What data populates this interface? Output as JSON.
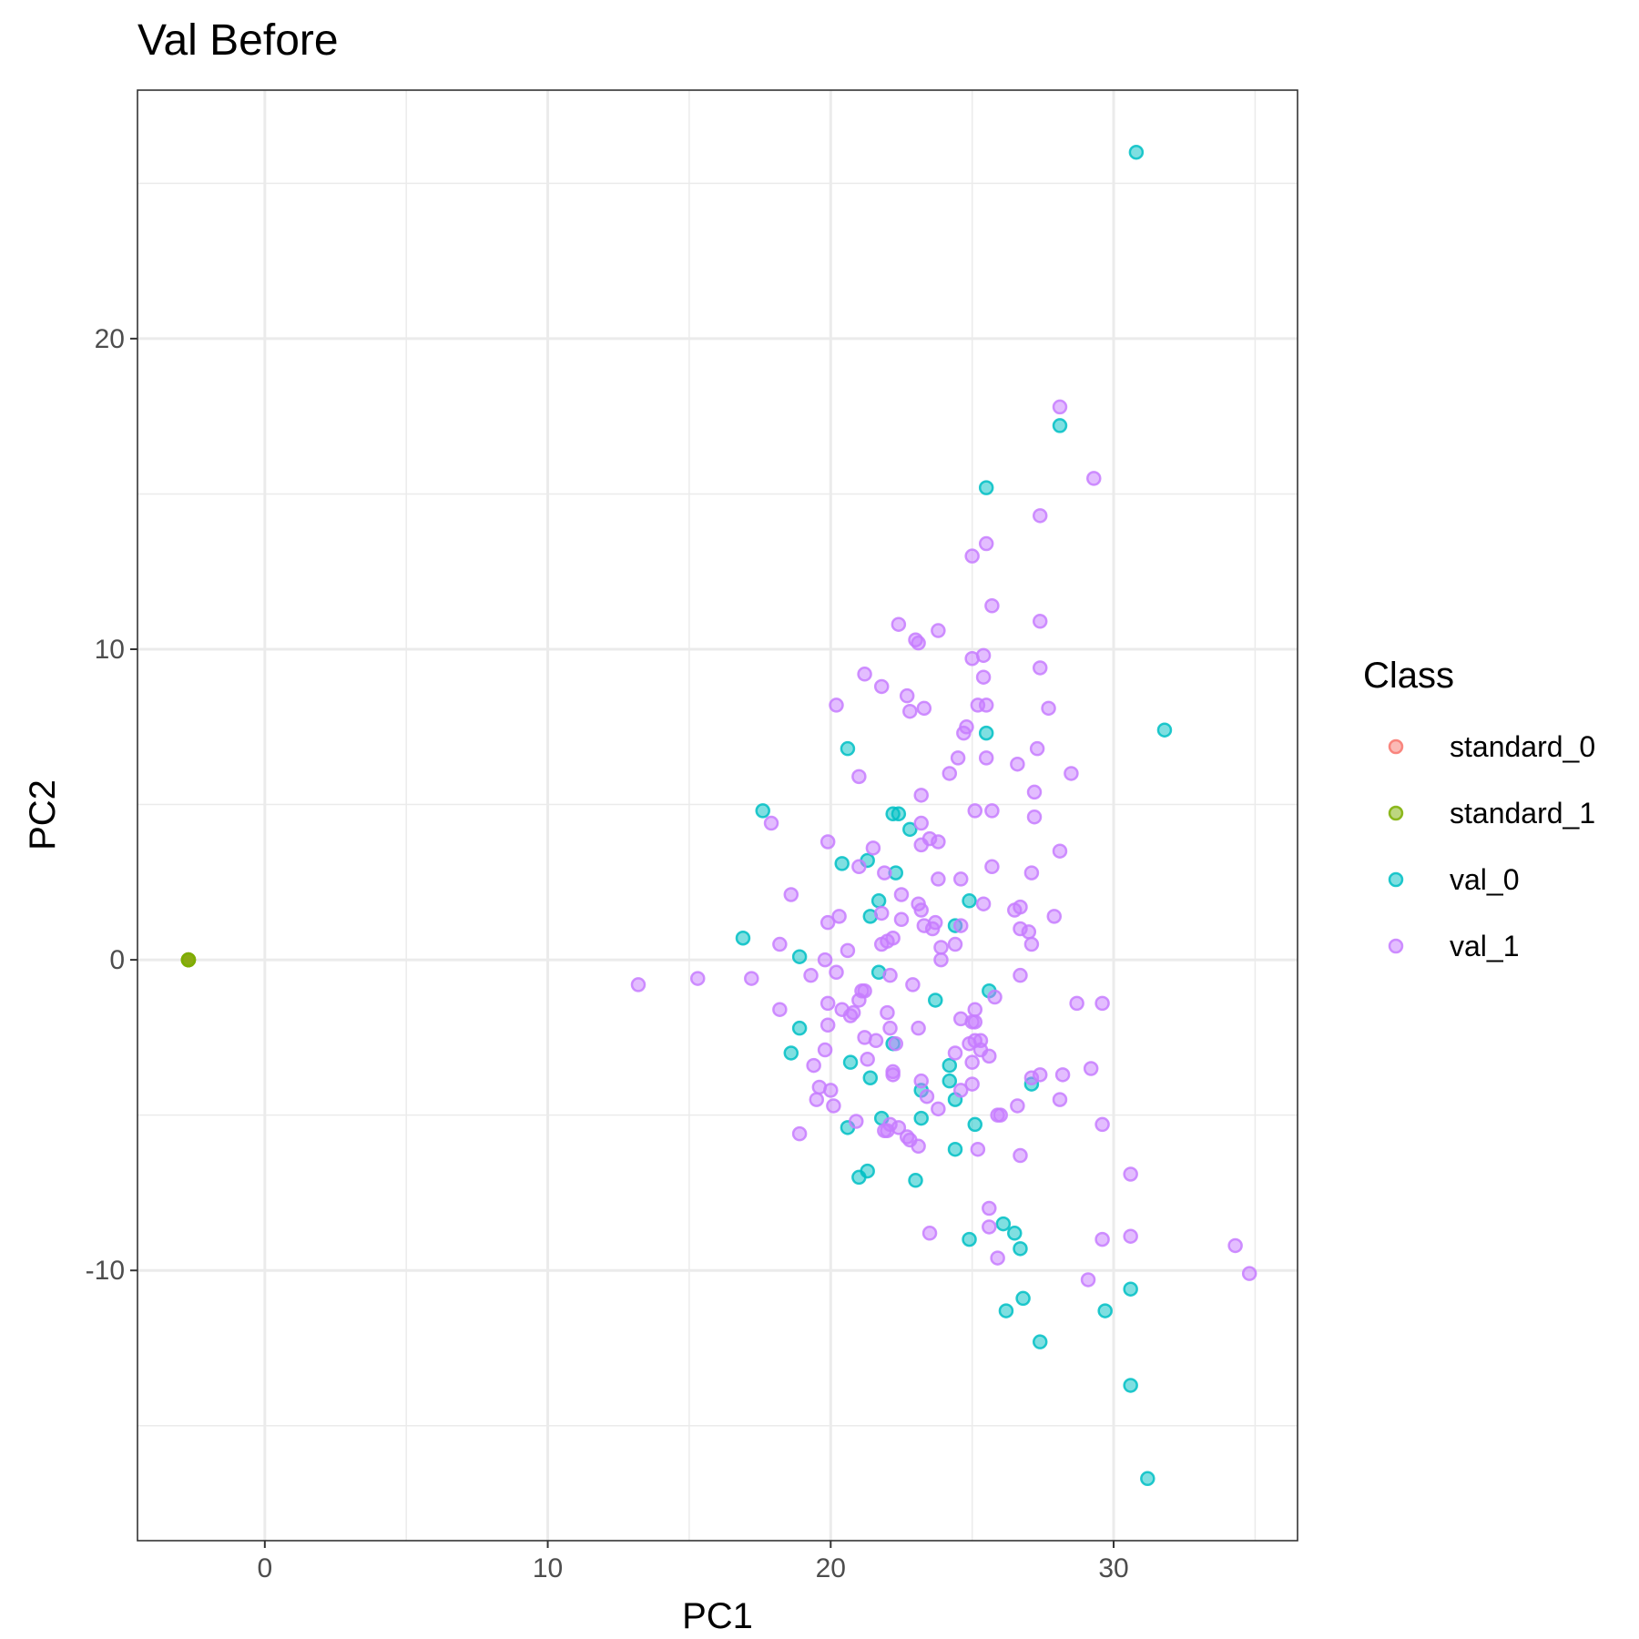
{
  "chart_data": {
    "type": "scatter",
    "title": "Val Before",
    "xlabel": "PC1",
    "ylabel": "PC2",
    "xlim": [
      -4.5,
      36.5
    ],
    "ylim": [
      -18.7,
      28
    ],
    "x_ticks": [
      0,
      10,
      20,
      30
    ],
    "y_ticks": [
      -10,
      0,
      10,
      20
    ],
    "x_tick_labels": [
      "0",
      "10",
      "20",
      "30"
    ],
    "y_tick_labels": [
      "-10",
      "0",
      "10",
      "20"
    ],
    "grid": true,
    "legend": {
      "title": "Class",
      "position": "right",
      "entries": [
        "standard_0",
        "standard_1",
        "val_0",
        "val_1"
      ]
    },
    "series": [
      {
        "name": "standard_0",
        "color": "#F8766D",
        "points": [
          [
            -2.7,
            0.0
          ],
          [
            -2.7,
            0.0
          ]
        ]
      },
      {
        "name": "standard_1",
        "color": "#7CAE00",
        "points": [
          [
            -2.7,
            0.0
          ],
          [
            -2.7,
            0.0
          ],
          [
            -2.7,
            0.0
          ]
        ]
      },
      {
        "name": "val_0",
        "color": "#00BFC4",
        "points": [
          [
            30.8,
            26.0
          ],
          [
            28.1,
            17.2
          ],
          [
            25.5,
            15.2
          ],
          [
            31.8,
            7.4
          ],
          [
            25.5,
            7.3
          ],
          [
            20.6,
            6.8
          ],
          [
            17.6,
            4.8
          ],
          [
            22.2,
            4.7
          ],
          [
            22.4,
            4.7
          ],
          [
            22.8,
            4.2
          ],
          [
            21.3,
            3.2
          ],
          [
            20.4,
            3.1
          ],
          [
            22.3,
            2.8
          ],
          [
            21.7,
            1.9
          ],
          [
            24.9,
            1.9
          ],
          [
            21.4,
            1.4
          ],
          [
            24.4,
            1.1
          ],
          [
            16.9,
            0.7
          ],
          [
            18.9,
            0.1
          ],
          [
            21.7,
            -0.4
          ],
          [
            25.6,
            -1.0
          ],
          [
            23.7,
            -1.3
          ],
          [
            18.9,
            -2.2
          ],
          [
            22.2,
            -2.7
          ],
          [
            18.6,
            -3.0
          ],
          [
            20.7,
            -3.3
          ],
          [
            24.2,
            -3.4
          ],
          [
            21.4,
            -3.8
          ],
          [
            24.2,
            -3.9
          ],
          [
            27.1,
            -4.0
          ],
          [
            23.2,
            -4.2
          ],
          [
            24.4,
            -4.5
          ],
          [
            21.8,
            -5.1
          ],
          [
            23.2,
            -5.1
          ],
          [
            20.6,
            -5.4
          ],
          [
            25.1,
            -5.3
          ],
          [
            24.4,
            -6.1
          ],
          [
            21.3,
            -6.8
          ],
          [
            21.0,
            -7.0
          ],
          [
            23.0,
            -7.1
          ],
          [
            26.1,
            -8.5
          ],
          [
            26.5,
            -8.8
          ],
          [
            24.9,
            -9.0
          ],
          [
            26.7,
            -9.3
          ],
          [
            30.6,
            -10.6
          ],
          [
            26.8,
            -10.9
          ],
          [
            26.2,
            -11.3
          ],
          [
            29.7,
            -11.3
          ],
          [
            27.4,
            -12.3
          ],
          [
            30.6,
            -13.7
          ],
          [
            31.2,
            -16.7
          ]
        ]
      },
      {
        "name": "val_1",
        "color": "#C77CFF",
        "points": [
          [
            28.1,
            17.8
          ],
          [
            29.3,
            15.5
          ],
          [
            27.4,
            14.3
          ],
          [
            25.5,
            13.4
          ],
          [
            25.0,
            13.0
          ],
          [
            25.7,
            11.4
          ],
          [
            27.4,
            10.9
          ],
          [
            22.4,
            10.8
          ],
          [
            23.8,
            10.6
          ],
          [
            23.0,
            10.3
          ],
          [
            23.1,
            10.2
          ],
          [
            25.4,
            9.8
          ],
          [
            25.0,
            9.7
          ],
          [
            27.4,
            9.4
          ],
          [
            21.2,
            9.2
          ],
          [
            25.4,
            9.1
          ],
          [
            21.8,
            8.8
          ],
          [
            22.7,
            8.5
          ],
          [
            20.2,
            8.2
          ],
          [
            25.5,
            8.2
          ],
          [
            25.2,
            8.2
          ],
          [
            27.7,
            8.1
          ],
          [
            23.3,
            8.1
          ],
          [
            22.8,
            8.0
          ],
          [
            24.8,
            7.5
          ],
          [
            24.7,
            7.3
          ],
          [
            27.3,
            6.8
          ],
          [
            24.5,
            6.5
          ],
          [
            25.5,
            6.5
          ],
          [
            26.6,
            6.3
          ],
          [
            28.5,
            6.0
          ],
          [
            24.2,
            6.0
          ],
          [
            21.0,
            5.9
          ],
          [
            27.2,
            5.4
          ],
          [
            23.2,
            5.3
          ],
          [
            25.7,
            4.8
          ],
          [
            25.1,
            4.8
          ],
          [
            27.2,
            4.6
          ],
          [
            17.9,
            4.4
          ],
          [
            23.2,
            4.4
          ],
          [
            23.5,
            3.9
          ],
          [
            23.8,
            3.8
          ],
          [
            19.9,
            3.8
          ],
          [
            21.5,
            3.6
          ],
          [
            23.2,
            3.7
          ],
          [
            28.1,
            3.5
          ],
          [
            21.0,
            3.0
          ],
          [
            25.7,
            3.0
          ],
          [
            27.1,
            2.8
          ],
          [
            21.9,
            2.8
          ],
          [
            24.6,
            2.6
          ],
          [
            23.8,
            2.6
          ],
          [
            22.5,
            2.1
          ],
          [
            18.6,
            2.1
          ],
          [
            23.1,
            1.8
          ],
          [
            25.4,
            1.8
          ],
          [
            26.7,
            1.7
          ],
          [
            26.5,
            1.6
          ],
          [
            23.2,
            1.6
          ],
          [
            27.9,
            1.4
          ],
          [
            20.3,
            1.4
          ],
          [
            21.8,
            1.5
          ],
          [
            22.5,
            1.3
          ],
          [
            19.9,
            1.2
          ],
          [
            23.7,
            1.2
          ],
          [
            23.3,
            1.1
          ],
          [
            23.6,
            1.0
          ],
          [
            24.6,
            1.1
          ],
          [
            26.7,
            1.0
          ],
          [
            27.0,
            0.9
          ],
          [
            22.2,
            0.7
          ],
          [
            22.0,
            0.6
          ],
          [
            21.8,
            0.5
          ],
          [
            18.2,
            0.5
          ],
          [
            24.4,
            0.5
          ],
          [
            23.9,
            0.4
          ],
          [
            27.1,
            0.5
          ],
          [
            20.6,
            0.3
          ],
          [
            19.8,
            0.0
          ],
          [
            23.9,
            0.0
          ],
          [
            13.2,
            -0.8
          ],
          [
            15.3,
            -0.6
          ],
          [
            17.2,
            -0.6
          ],
          [
            19.3,
            -0.5
          ],
          [
            20.2,
            -0.4
          ],
          [
            22.1,
            -0.5
          ],
          [
            26.7,
            -0.5
          ],
          [
            22.9,
            -0.8
          ],
          [
            21.1,
            -1.0
          ],
          [
            21.2,
            -1.0
          ],
          [
            25.8,
            -1.2
          ],
          [
            21.0,
            -1.3
          ],
          [
            19.9,
            -1.4
          ],
          [
            28.7,
            -1.4
          ],
          [
            29.6,
            -1.4
          ],
          [
            18.2,
            -1.6
          ],
          [
            20.4,
            -1.6
          ],
          [
            20.8,
            -1.7
          ],
          [
            20.7,
            -1.8
          ],
          [
            22.0,
            -1.7
          ],
          [
            25.1,
            -1.6
          ],
          [
            24.6,
            -1.9
          ],
          [
            25.0,
            -2.0
          ],
          [
            25.1,
            -2.0
          ],
          [
            19.9,
            -2.1
          ],
          [
            22.1,
            -2.2
          ],
          [
            23.1,
            -2.2
          ],
          [
            21.2,
            -2.5
          ],
          [
            21.6,
            -2.6
          ],
          [
            25.1,
            -2.6
          ],
          [
            25.3,
            -2.6
          ],
          [
            24.9,
            -2.7
          ],
          [
            22.3,
            -2.7
          ],
          [
            25.3,
            -2.9
          ],
          [
            24.4,
            -3.0
          ],
          [
            25.6,
            -3.1
          ],
          [
            19.8,
            -2.9
          ],
          [
            21.3,
            -3.2
          ],
          [
            25.0,
            -3.3
          ],
          [
            19.4,
            -3.4
          ],
          [
            29.2,
            -3.5
          ],
          [
            22.2,
            -3.6
          ],
          [
            22.2,
            -3.7
          ],
          [
            27.4,
            -3.7
          ],
          [
            28.2,
            -3.7
          ],
          [
            23.2,
            -3.9
          ],
          [
            27.1,
            -3.8
          ],
          [
            25.0,
            -4.0
          ],
          [
            19.6,
            -4.1
          ],
          [
            20.0,
            -4.2
          ],
          [
            24.6,
            -4.2
          ],
          [
            23.4,
            -4.4
          ],
          [
            28.1,
            -4.5
          ],
          [
            19.5,
            -4.5
          ],
          [
            20.1,
            -4.7
          ],
          [
            26.6,
            -4.7
          ],
          [
            23.8,
            -4.8
          ],
          [
            25.9,
            -5.0
          ],
          [
            26.0,
            -5.0
          ],
          [
            20.9,
            -5.2
          ],
          [
            22.1,
            -5.3
          ],
          [
            29.6,
            -5.3
          ],
          [
            21.9,
            -5.5
          ],
          [
            22.4,
            -5.4
          ],
          [
            22.0,
            -5.5
          ],
          [
            18.9,
            -5.6
          ],
          [
            22.7,
            -5.7
          ],
          [
            22.8,
            -5.8
          ],
          [
            23.1,
            -6.0
          ],
          [
            25.2,
            -6.1
          ],
          [
            26.7,
            -6.3
          ],
          [
            30.6,
            -6.9
          ],
          [
            25.6,
            -8.0
          ],
          [
            25.6,
            -8.6
          ],
          [
            23.5,
            -8.8
          ],
          [
            29.6,
            -9.0
          ],
          [
            30.6,
            -8.9
          ],
          [
            34.3,
            -9.2
          ],
          [
            25.9,
            -9.6
          ],
          [
            34.8,
            -10.1
          ],
          [
            29.1,
            -10.3
          ]
        ]
      }
    ]
  }
}
